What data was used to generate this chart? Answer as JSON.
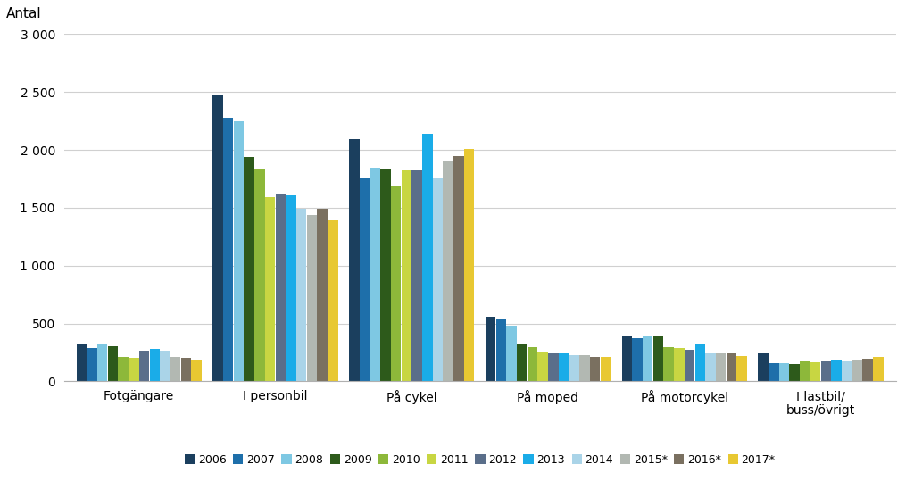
{
  "categories": [
    "Fotgängare",
    "I personbil",
    "På cykel",
    "På moped",
    "På motorcykel",
    "I lastbil/\nbuss/övrigt"
  ],
  "years": [
    "2006",
    "2007",
    "2008",
    "2009",
    "2010",
    "2011",
    "2012",
    "2013",
    "2014",
    "2015*",
    "2016*",
    "2017*"
  ],
  "colors": [
    "#1b3f5e",
    "#1e6faa",
    "#7ec8e3",
    "#2d5a1b",
    "#8db83a",
    "#c8d642",
    "#5a6e8a",
    "#1aace8",
    "#aad4e8",
    "#b2b8b2",
    "#7a7060",
    "#e8c832"
  ],
  "data": {
    "Fotgängare": [
      325,
      285,
      330,
      305,
      215,
      205,
      265,
      280,
      265,
      215,
      205,
      190
    ],
    "I personbil": [
      2475,
      2280,
      2250,
      1940,
      1840,
      1590,
      1620,
      1610,
      1490,
      1440,
      1490,
      1390
    ],
    "På cykel": [
      2095,
      1750,
      1850,
      1840,
      1690,
      1820,
      1820,
      2140,
      1765,
      1910,
      1950,
      2010
    ],
    "På moped": [
      560,
      535,
      480,
      320,
      295,
      250,
      245,
      245,
      230,
      230,
      215,
      215
    ],
    "På motorcykel": [
      400,
      370,
      395,
      395,
      295,
      285,
      270,
      320,
      245,
      240,
      245,
      220
    ],
    "I lastbil/\nbuss/övrigt": [
      245,
      160,
      160,
      150,
      170,
      165,
      170,
      185,
      180,
      190,
      195,
      210
    ]
  },
  "antal_label": "Antal",
  "ylim": [
    0,
    3000
  ],
  "yticks": [
    0,
    500,
    1000,
    1500,
    2000,
    2500,
    3000
  ],
  "ytick_labels": [
    "0",
    "500",
    "1 000",
    "1 500",
    "2 000",
    "2 500",
    "3 000"
  ],
  "bg_color": "#ffffff",
  "grid_color": "#d0d0d0"
}
